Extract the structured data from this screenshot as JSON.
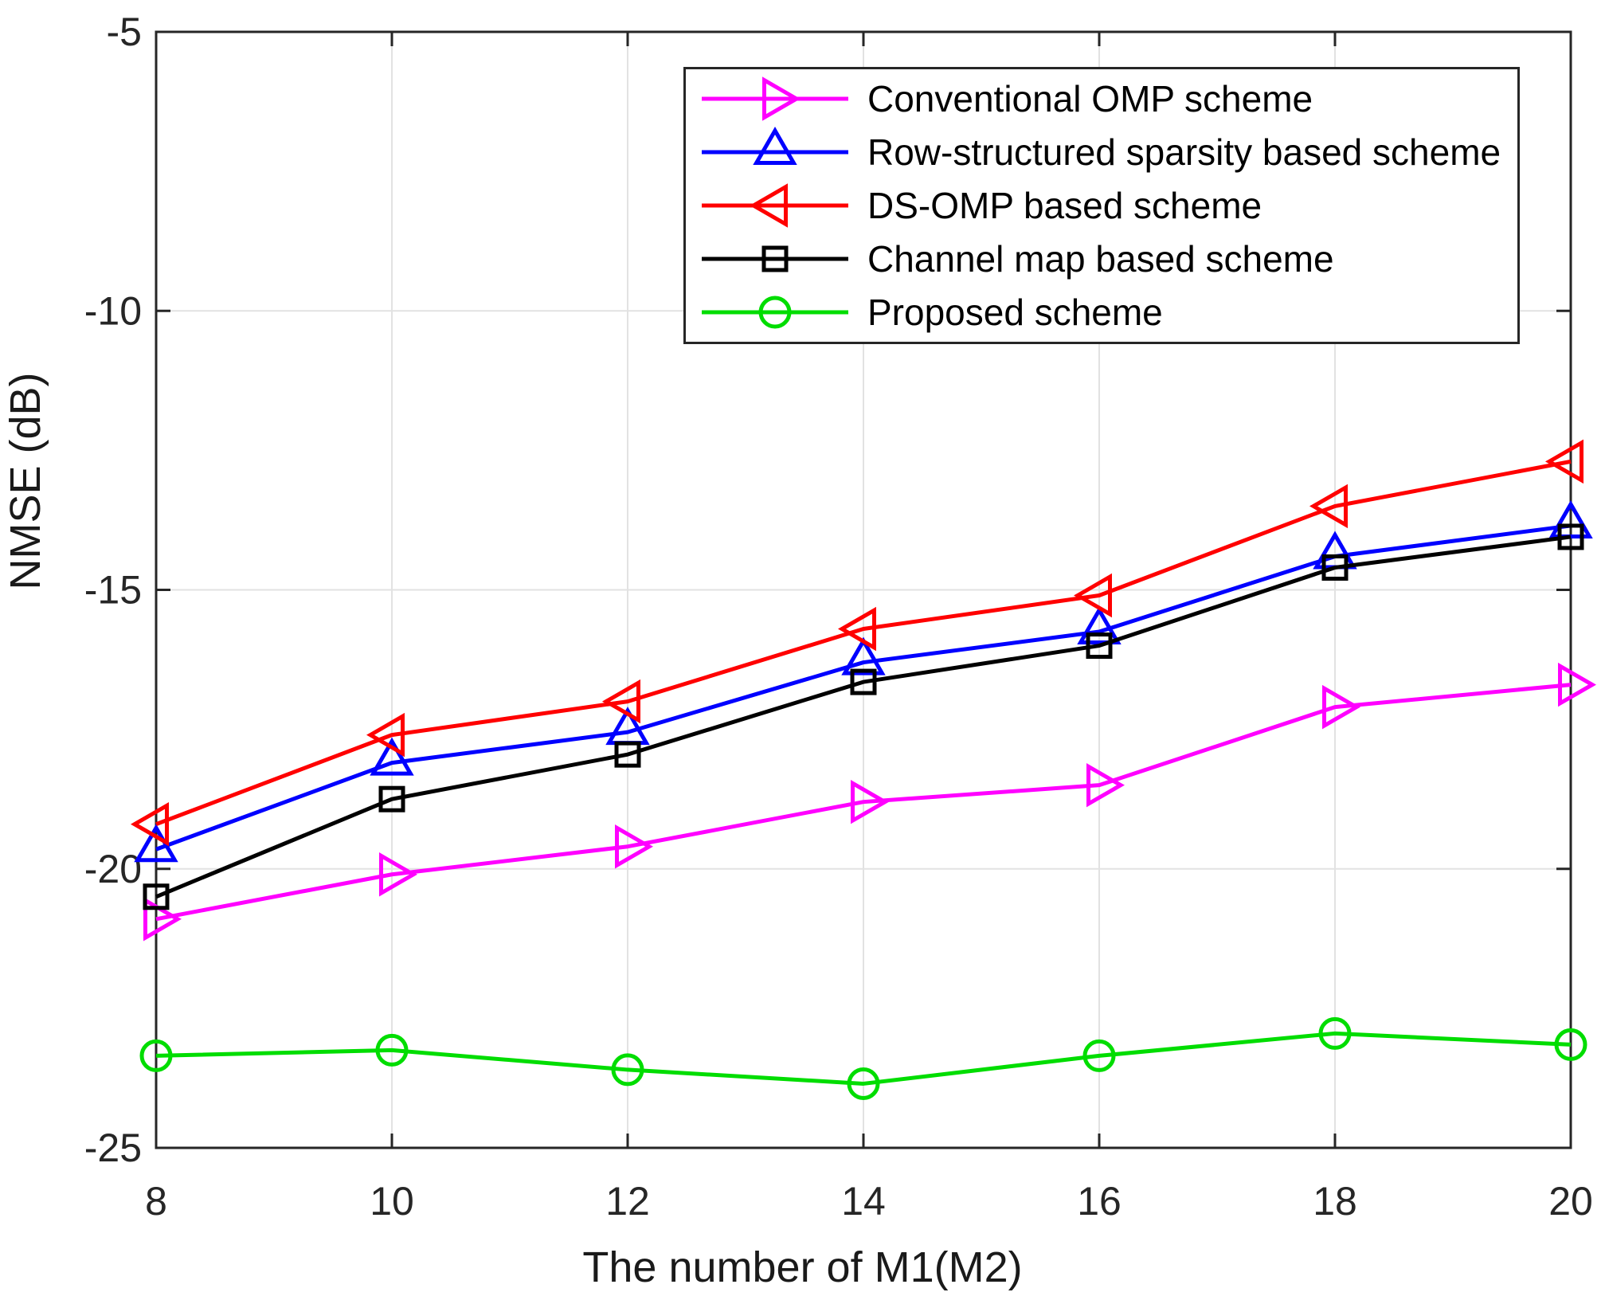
{
  "figure": {
    "background": "#ffffff",
    "axis_color": "#262626",
    "grid_color": "#e2e2e2",
    "tick_label_color": "#262626"
  },
  "chart_data": {
    "type": "line",
    "title": "",
    "xlabel": "The number of M1(M2)",
    "ylabel": "NMSE (dB)",
    "xlim": [
      8,
      20
    ],
    "ylim": [
      -25,
      -5
    ],
    "xticks": [
      8,
      10,
      12,
      14,
      16,
      18,
      20
    ],
    "yticks": [
      -25,
      -20,
      -15,
      -10,
      -5
    ],
    "xtick_labels": [
      "8",
      "10",
      "12",
      "14",
      "16",
      "18",
      "20"
    ],
    "ytick_labels": [
      "-25",
      "-20",
      "-15",
      "-10",
      "-5"
    ],
    "grid": true,
    "legend_position": "top-center-inside",
    "x": [
      8,
      10,
      12,
      14,
      16,
      18,
      20
    ],
    "series": [
      {
        "name": "Conventional OMP scheme",
        "color": "#ff00ff",
        "marker": "triangle-right",
        "values": [
          -20.9,
          -20.1,
          -19.6,
          -18.8,
          -18.5,
          -17.1,
          -16.7
        ]
      },
      {
        "name": "Row-structured sparsity based scheme",
        "color": "#0000ff",
        "marker": "triangle-up",
        "values": [
          -19.65,
          -18.1,
          -17.55,
          -16.3,
          -15.75,
          -14.4,
          -13.85
        ]
      },
      {
        "name": "DS-OMP based scheme",
        "color": "#ff0000",
        "marker": "triangle-left",
        "values": [
          -19.2,
          -17.6,
          -17.0,
          -15.7,
          -15.1,
          -13.5,
          -12.7
        ]
      },
      {
        "name": "Channel map based scheme",
        "color": "#000000",
        "marker": "square",
        "values": [
          -20.5,
          -18.75,
          -17.95,
          -16.65,
          -16.0,
          -14.6,
          -14.05
        ]
      },
      {
        "name": "Proposed scheme",
        "color": "#00dd00",
        "marker": "circle",
        "values": [
          -23.35,
          -23.25,
          -23.6,
          -23.85,
          -23.35,
          -22.95,
          -23.15
        ]
      }
    ]
  }
}
